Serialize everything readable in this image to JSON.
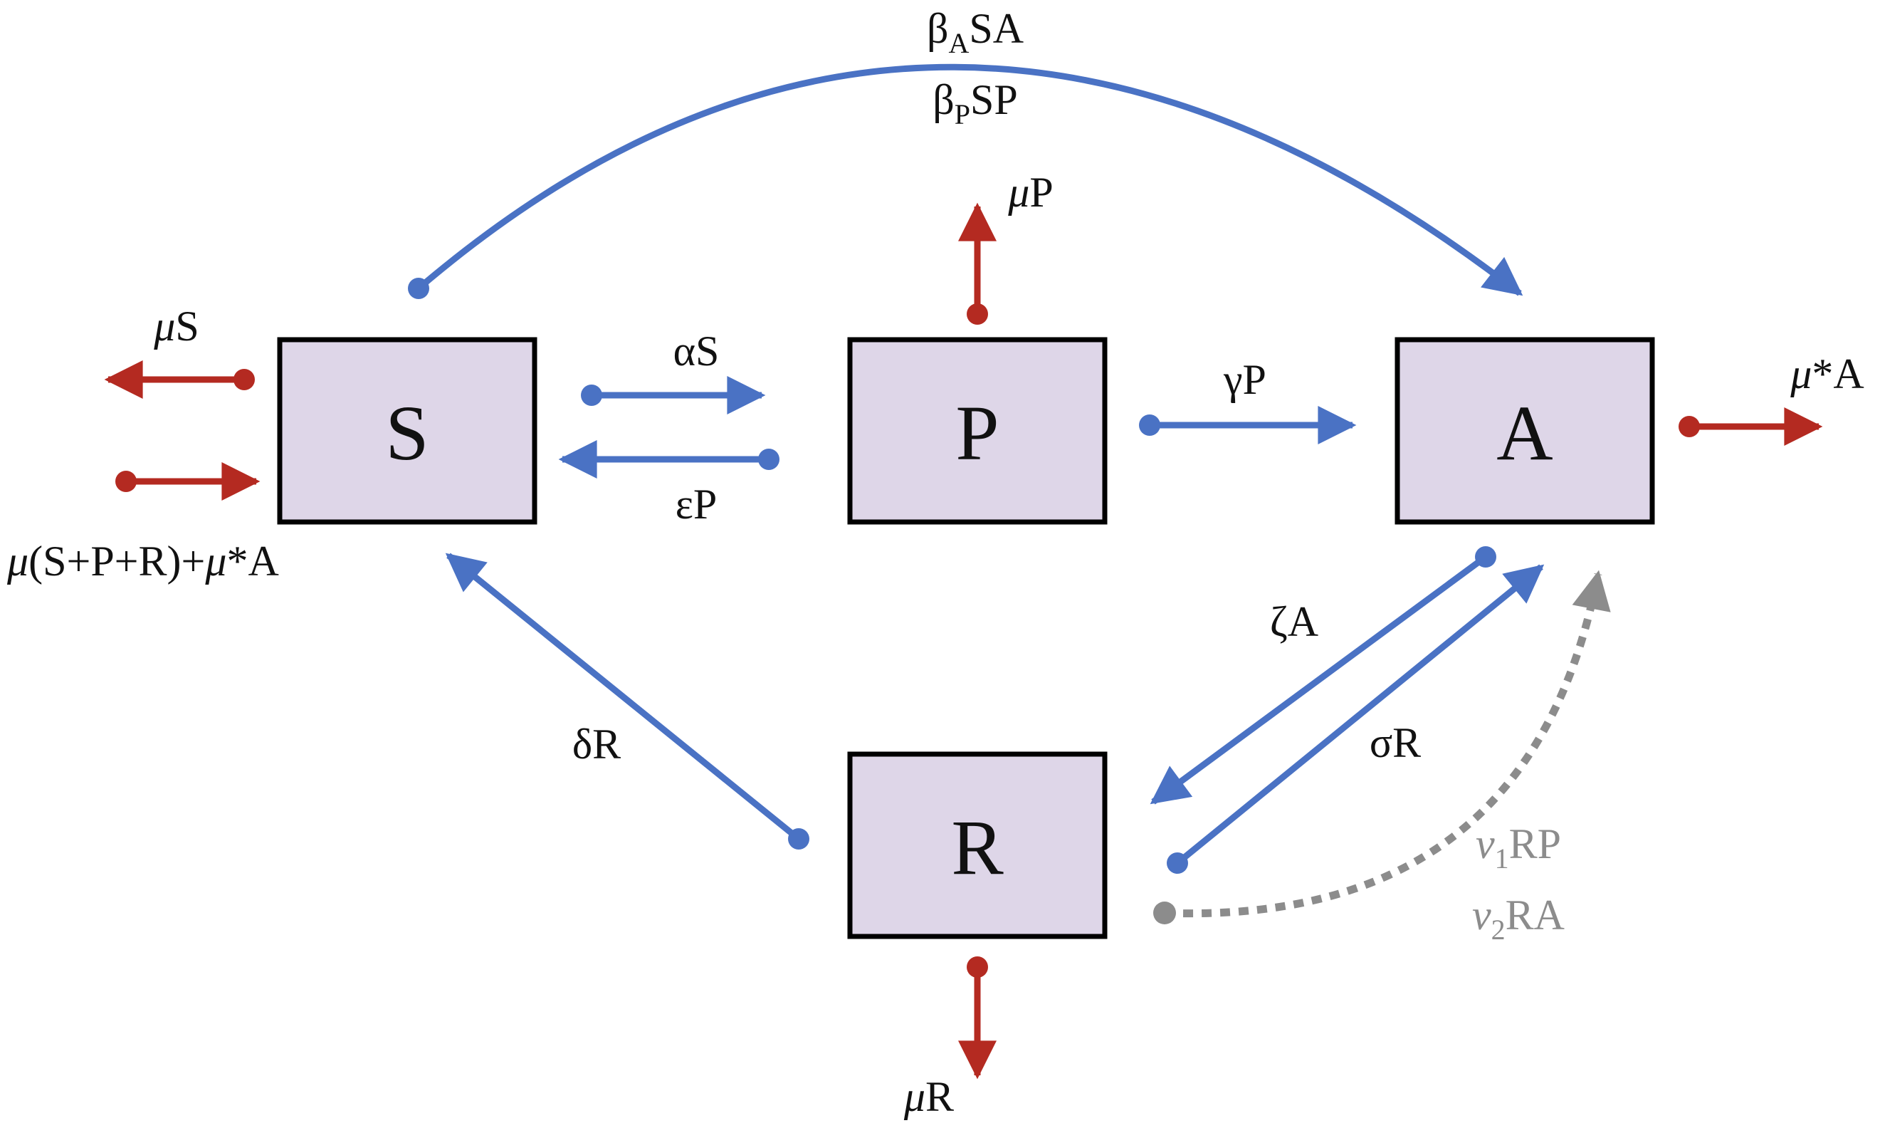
{
  "compartments": {
    "s": "S",
    "p": "P",
    "a": "A",
    "r": "R"
  },
  "rates": {
    "beta_a_sa": {
      "base": "β",
      "sub": "A",
      "rest": "SA"
    },
    "beta_p_sp": {
      "base": "β",
      "sub": "P",
      "rest": "SP"
    },
    "alpha_s": "αS",
    "epsilon_p": "εP",
    "gamma_p": "γP",
    "mu_p": {
      "mu": "μ",
      "rest": "P"
    },
    "mu_s": {
      "mu": "μ",
      "rest": "S"
    },
    "mu_star_a": {
      "mu": "μ",
      "rest": "*A"
    },
    "birth": {
      "mu1": "μ",
      "mid": "(S+P+R)+",
      "mu2": "μ",
      "rest": "*A"
    },
    "delta_r": "δR",
    "zeta_a": "ζA",
    "sigma_r": "σR",
    "nu1_rp": {
      "base": "ν",
      "sub": "1",
      "rest": "RP"
    },
    "nu2_ra": {
      "base": "ν",
      "sub": "2",
      "rest": "RA"
    },
    "mu_r": {
      "mu": "μ",
      "rest": "R"
    }
  },
  "colors": {
    "transition": "#4a72c4",
    "demographic": "#b42a21",
    "vaccination": "#8c8c8c",
    "box_fill": "#ded6e8"
  }
}
